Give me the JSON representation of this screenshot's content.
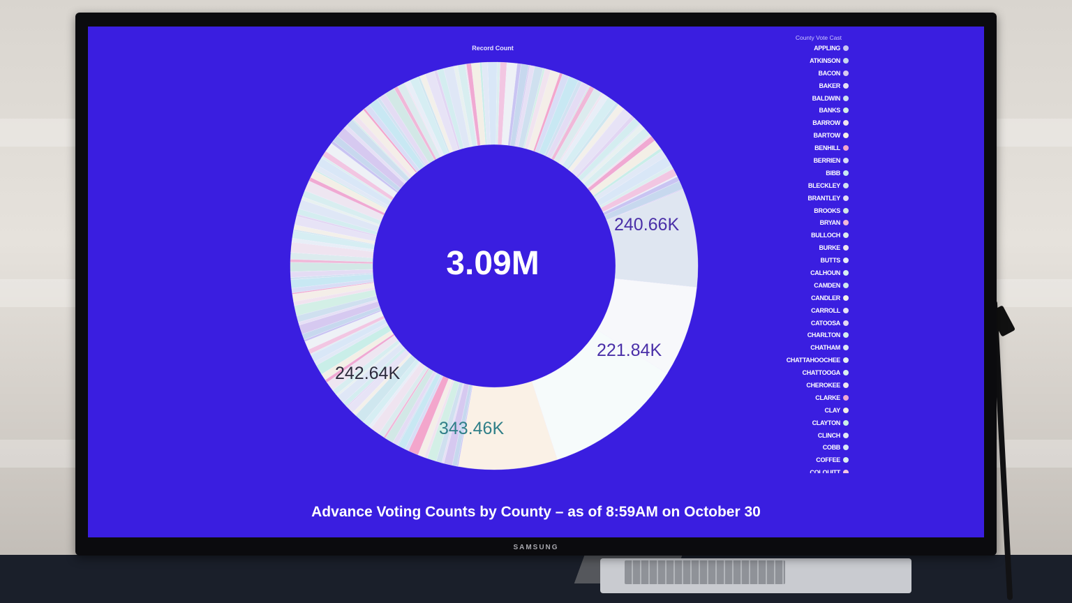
{
  "screen": {
    "brand": "SAMSUNG",
    "background_color": "#3a1ee0"
  },
  "chart_data": {
    "type": "pie",
    "title": "Record Count",
    "total_label": "3.09M",
    "caption": "Advance Voting Counts by County – as of 8:59AM on October 30",
    "legend": {
      "title": "County Vote Cast",
      "placement": "right",
      "items": [
        {
          "label": "APPLING",
          "color": "#c9c4f2"
        },
        {
          "label": "ATKINSON",
          "color": "#c7d8ee"
        },
        {
          "label": "BACON",
          "color": "#d6c9f0"
        },
        {
          "label": "BAKER",
          "color": "#e6e0f5"
        },
        {
          "label": "BALDWIN",
          "color": "#cfe0ef"
        },
        {
          "label": "BANKS",
          "color": "#d3efe6"
        },
        {
          "label": "BARROW",
          "color": "#f1e3ef"
        },
        {
          "label": "BARTOW",
          "color": "#f4eee8"
        },
        {
          "label": "BENHILL",
          "color": "#f3a6cc"
        },
        {
          "label": "BERRIEN",
          "color": "#d8def6"
        },
        {
          "label": "BIBB",
          "color": "#c8e8f3"
        },
        {
          "label": "BLECKLEY",
          "color": "#d2e2f1"
        },
        {
          "label": "BRANTLEY",
          "color": "#e4dcf4"
        },
        {
          "label": "BROOKS",
          "color": "#d2e8e6"
        },
        {
          "label": "BRYAN",
          "color": "#f0b8d8"
        },
        {
          "label": "BULLOCH",
          "color": "#dcebee"
        },
        {
          "label": "BURKE",
          "color": "#efe4f0"
        },
        {
          "label": "BUTTS",
          "color": "#e8eef7"
        },
        {
          "label": "CALHOUN",
          "color": "#d6eef3"
        },
        {
          "label": "CAMDEN",
          "color": "#cfe7ef"
        },
        {
          "label": "CANDLER",
          "color": "#f3f0ea"
        },
        {
          "label": "CARROLL",
          "color": "#e7e3f6"
        },
        {
          "label": "CATOOSA",
          "color": "#e2d6f3"
        },
        {
          "label": "CHARLTON",
          "color": "#d4edf0"
        },
        {
          "label": "CHATHAM",
          "color": "#dfe7f6"
        },
        {
          "label": "CHATTAHOOCHEE",
          "color": "#e8f1f0"
        },
        {
          "label": "CHATTOOGA",
          "color": "#d8eef0"
        },
        {
          "label": "CHEROKEE",
          "color": "#eee6f1"
        },
        {
          "label": "CLARKE",
          "color": "#f0a9d2"
        },
        {
          "label": "CLAY",
          "color": "#f3efe6"
        },
        {
          "label": "CLAYTON",
          "color": "#c9eee8"
        },
        {
          "label": "CLINCH",
          "color": "#e1e9f6"
        },
        {
          "label": "COBB",
          "color": "#d9e7f7"
        },
        {
          "label": "COFFEE",
          "color": "#dceef0"
        },
        {
          "label": "COLQUITT",
          "color": "#f2c6e2"
        }
      ]
    },
    "slices": [
      {
        "label": "240.66K",
        "value": 240660,
        "color": "#dfe6f1",
        "label_color": "#4a2fa8"
      },
      {
        "label": "221.84K",
        "value": 221840,
        "color": "#f7f8fb",
        "label_color": "#4a2fa8"
      },
      {
        "label": "343.46K",
        "value": 343460,
        "color": "#f6fbfb",
        "label_color": "#2f7f88"
      },
      {
        "label": "242.64K",
        "value": 242640,
        "color": "#faf1e6",
        "label_color": "#2d2b3c"
      }
    ],
    "other_slices_color": "#eef1f6"
  }
}
